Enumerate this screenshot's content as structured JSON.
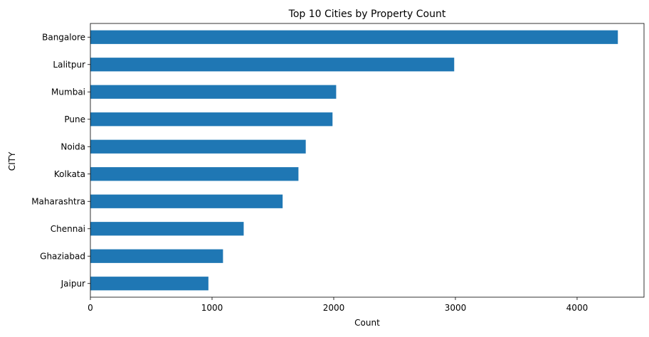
{
  "chart_data": {
    "type": "bar",
    "orientation": "horizontal",
    "title": "Top 10 Cities by Property Count",
    "xlabel": "Count",
    "ylabel": "CITY",
    "categories": [
      "Bangalore",
      "Lalitpur",
      "Mumbai",
      "Pune",
      "Noida",
      "Kolkata",
      "Maharashtra",
      "Chennai",
      "Ghaziabad",
      "Jaipur"
    ],
    "values": [
      4335,
      2990,
      2020,
      1990,
      1770,
      1710,
      1580,
      1260,
      1090,
      970
    ],
    "xlim": [
      0,
      4550
    ],
    "xticks": [
      0,
      1000,
      2000,
      3000,
      4000
    ],
    "grid": false,
    "legend": "none",
    "bar_color": "#1f77b4"
  }
}
